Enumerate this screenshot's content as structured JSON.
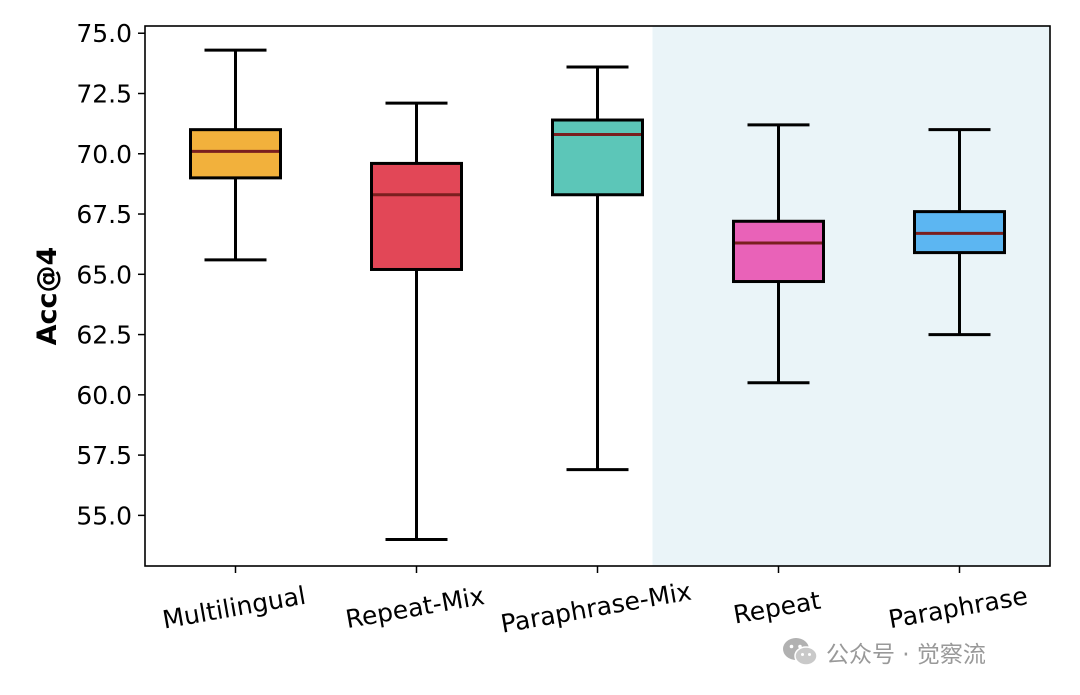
{
  "chart_data": {
    "type": "boxplot",
    "ylabel": "Acc@4",
    "xlabel": "",
    "ylim": [
      52.9,
      75.3
    ],
    "yticks": [
      55.0,
      57.5,
      60.0,
      62.5,
      65.0,
      67.5,
      70.0,
      72.5,
      75.0
    ],
    "ytick_labels": [
      "55.0",
      "57.5",
      "60.0",
      "62.5",
      "65.0",
      "67.5",
      "70.0",
      "72.5",
      "75.0"
    ],
    "shaded_group": {
      "from": "Repeat",
      "to": "Paraphrase",
      "color": "#eaf4f8"
    },
    "median_color": "#7a1f1f",
    "categories": [
      "Multilingual",
      "Repeat-Mix",
      "Paraphrase-Mix",
      "Repeat",
      "Paraphrase"
    ],
    "boxes": [
      {
        "name": "Multilingual",
        "whisker_low": 65.6,
        "q1": 69.0,
        "median": 70.1,
        "q3": 71.0,
        "whisker_high": 74.3,
        "color": "#f2b13c"
      },
      {
        "name": "Repeat-Mix",
        "whisker_low": 54.0,
        "q1": 65.2,
        "median": 68.3,
        "q3": 69.6,
        "whisker_high": 72.1,
        "color": "#e24757"
      },
      {
        "name": "Paraphrase-Mix",
        "whisker_low": 56.9,
        "q1": 68.3,
        "median": 70.8,
        "q3": 71.4,
        "whisker_high": 73.6,
        "color": "#5cc6b8"
      },
      {
        "name": "Repeat",
        "whisker_low": 60.5,
        "q1": 64.7,
        "median": 66.3,
        "q3": 67.2,
        "whisker_high": 71.2,
        "color": "#e962b8"
      },
      {
        "name": "Paraphrase",
        "whisker_low": 62.5,
        "q1": 65.9,
        "median": 66.7,
        "q3": 67.6,
        "whisker_high": 71.0,
        "color": "#5cb6f2"
      }
    ]
  },
  "watermark": {
    "text": "公众号 · 觉察流",
    "icon": "wechat-icon"
  }
}
